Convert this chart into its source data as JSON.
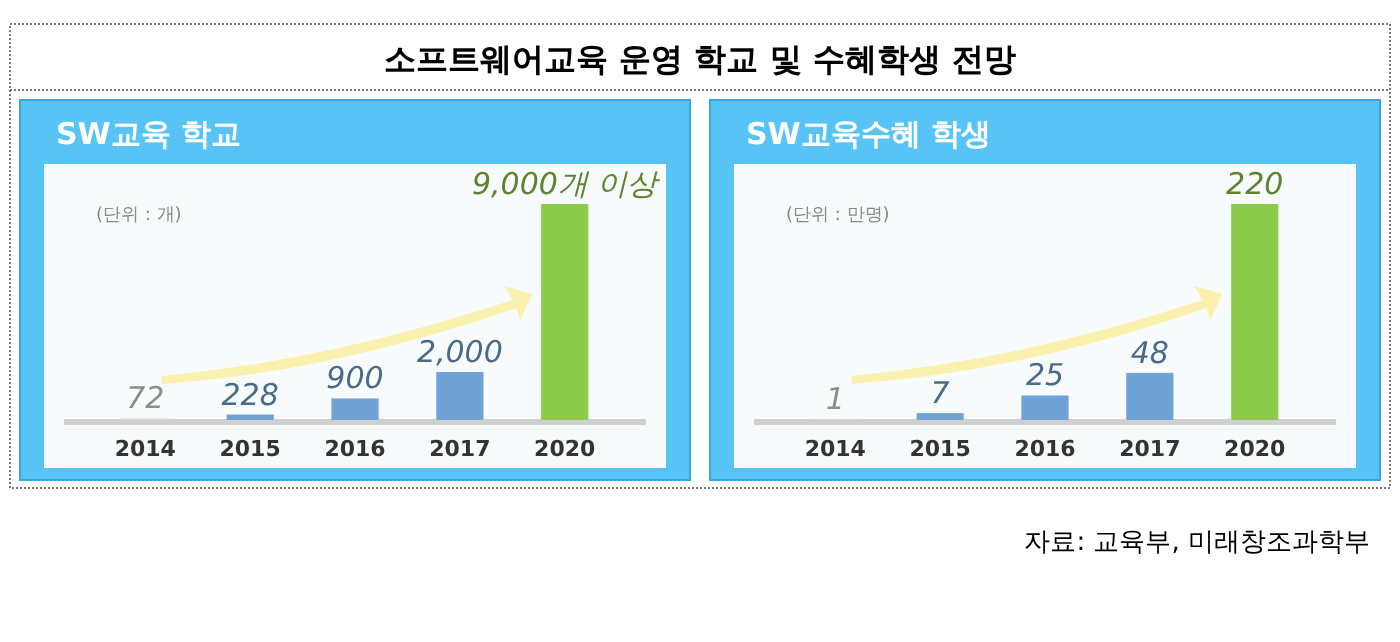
{
  "chart_data": [
    {
      "type": "bar",
      "title": "SW교육 학교",
      "annotations": [
        "소프트웨어교육 운영 학교 및 수혜학생 전망",
        "(단위 : 개)"
      ],
      "categories": [
        "2014",
        "2015",
        "2016",
        "2017",
        "2020"
      ],
      "values": [
        72,
        228,
        900,
        2000,
        9000
      ],
      "colors": [
        "#d9d9d9",
        "#6fa3d6",
        "#6fa3d6",
        "#6fa3d6",
        "#8dcb4a"
      ],
      "value_labels": [
        "72",
        "228",
        "900",
        "2,000",
        "9,000개 이상"
      ]
    },
    {
      "type": "bar",
      "title": "SW교육수혜 학생",
      "annotations": [
        "(단위 : 만명)",
        "자료: 교육부, 미래창조과학부"
      ],
      "categories": [
        "2014",
        "2015",
        "2016",
        "2017",
        "2020"
      ],
      "values": [
        1,
        7,
        25,
        48,
        220
      ],
      "colors": [
        "#d9d9d9",
        "#6fa3d6",
        "#6fa3d6",
        "#6fa3d6",
        "#8dcb4a"
      ],
      "data_labels": true
    }
  ]
}
